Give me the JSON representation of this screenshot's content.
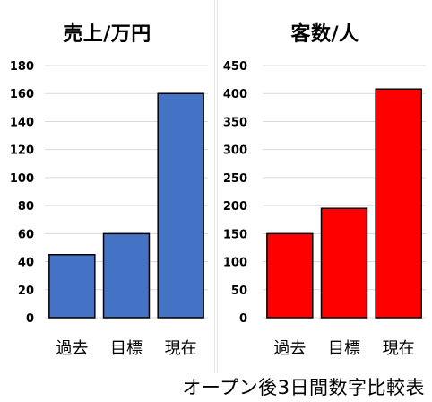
{
  "caption": "オープン後3日間数字比較表",
  "chart_data": [
    {
      "type": "bar",
      "title": "売上/万円",
      "categories": [
        "過去",
        "目標",
        "現在"
      ],
      "values": [
        45,
        60,
        160
      ],
      "ylim": [
        0,
        180
      ],
      "yticks": [
        "0",
        "20",
        "40",
        "60",
        "80",
        "100",
        "120",
        "140",
        "160",
        "180"
      ],
      "grid": true,
      "bar_color": "#4472C4"
    },
    {
      "type": "bar",
      "title": "客数/人",
      "categories": [
        "過去",
        "目標",
        "現在"
      ],
      "values": [
        150,
        195,
        408
      ],
      "ylim": [
        0,
        450
      ],
      "yticks": [
        "0",
        "50",
        "100",
        "150",
        "200",
        "250",
        "300",
        "350",
        "400",
        "450"
      ],
      "grid": true,
      "bar_color": "#FF0000"
    }
  ]
}
